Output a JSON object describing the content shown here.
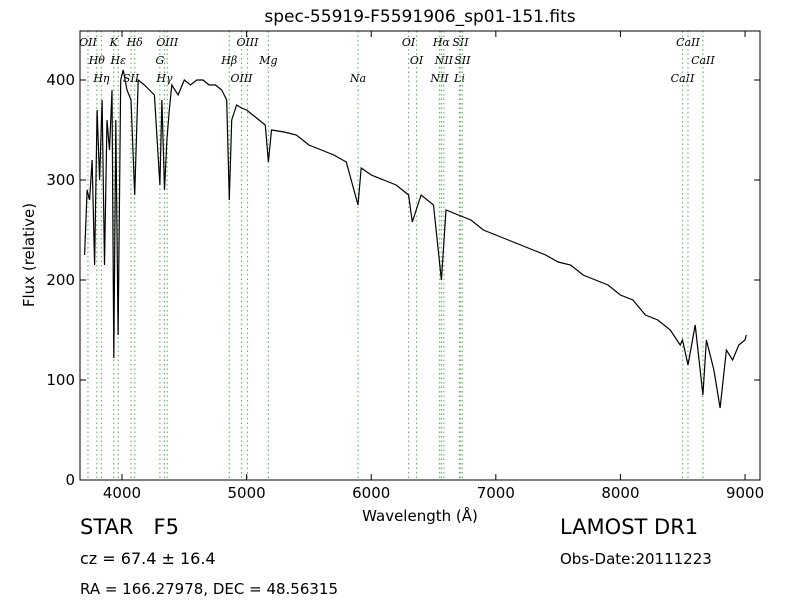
{
  "chart_data": {
    "type": "line",
    "title": "spec-55919-F5591906_sp01-151.fits",
    "x_label": "Wavelength (Å)",
    "y_label": "Flux (relative)",
    "color": "#000000",
    "x": [
      3700,
      3720,
      3740,
      3760,
      3780,
      3800,
      3820,
      3840,
      3860,
      3880,
      3900,
      3920,
      3934,
      3950,
      3969,
      3990,
      4010,
      4040,
      4072,
      4102,
      4130,
      4180,
      4220,
      4260,
      4304,
      4320,
      4341,
      4360,
      4380,
      4400,
      4450,
      4500,
      4550,
      4600,
      4650,
      4700,
      4750,
      4800,
      4840,
      4861,
      4880,
      4920,
      4960,
      5000,
      5050,
      5100,
      5150,
      5175,
      5200,
      5300,
      5400,
      5500,
      5600,
      5700,
      5800,
      5894,
      5920,
      6000,
      6100,
      6200,
      6300,
      6330,
      6400,
      6500,
      6563,
      6600,
      6700,
      6800,
      6900,
      7000,
      7100,
      7200,
      7300,
      7400,
      7500,
      7600,
      7700,
      7800,
      7900,
      8000,
      8100,
      8200,
      8300,
      8400,
      8480,
      8498,
      8542,
      8600,
      8662,
      8690,
      8750,
      8800,
      8850,
      8900,
      8950,
      9000,
      9010
    ],
    "values": [
      225,
      290,
      280,
      320,
      215,
      370,
      300,
      380,
      215,
      360,
      330,
      390,
      122,
      360,
      145,
      400,
      410,
      390,
      380,
      285,
      400,
      395,
      390,
      385,
      295,
      380,
      290,
      340,
      370,
      395,
      385,
      400,
      395,
      400,
      400,
      395,
      395,
      390,
      380,
      280,
      360,
      375,
      372,
      370,
      365,
      360,
      355,
      318,
      350,
      348,
      345,
      335,
      330,
      325,
      318,
      275,
      312,
      305,
      300,
      295,
      285,
      258,
      285,
      275,
      200,
      270,
      265,
      260,
      250,
      245,
      240,
      235,
      230,
      225,
      218,
      215,
      205,
      200,
      195,
      185,
      180,
      165,
      160,
      150,
      135,
      140,
      115,
      155,
      85,
      140,
      110,
      72,
      130,
      120,
      135,
      140,
      145
    ],
    "xlim": [
      3663,
      9120
    ],
    "ylim": [
      0,
      449
    ],
    "xticks": [
      4000,
      5000,
      6000,
      7000,
      8000,
      9000
    ],
    "yticks": [
      0,
      100,
      200,
      300,
      400
    ],
    "marker_color": "#66bb66",
    "markers": [
      {
        "label": "OII",
        "x": 3727
      },
      {
        "label": "Hθ",
        "x": 3798
      },
      {
        "label": "Hη",
        "x": 3835
      },
      {
        "label": "K",
        "x": 3934
      },
      {
        "label": "Hε",
        "x": 3970
      },
      {
        "label": "SII",
        "x": 4072
      },
      {
        "label": "Hδ",
        "x": 4102
      },
      {
        "label": "G",
        "x": 4304
      },
      {
        "label": "Hγ",
        "x": 4341
      },
      {
        "label": "OIII",
        "x": 4363
      },
      {
        "label": "Hβ",
        "x": 4861
      },
      {
        "label": "OIII",
        "x": 4959
      },
      {
        "label": "OIII",
        "x": 5007
      },
      {
        "label": "Mg",
        "x": 5175
      },
      {
        "label": "Na",
        "x": 5894
      },
      {
        "label": "OI",
        "x": 6300
      },
      {
        "label": "OI",
        "x": 6364
      },
      {
        "label": "NII",
        "x": 6548
      },
      {
        "label": "Hα",
        "x": 6563
      },
      {
        "label": "NII",
        "x": 6583
      },
      {
        "label": "Li",
        "x": 6708
      },
      {
        "label": "SII",
        "x": 6716
      },
      {
        "label": "SII",
        "x": 6731
      },
      {
        "label": "CaII",
        "x": 8498
      },
      {
        "label": "CaII",
        "x": 8542
      },
      {
        "label": "CaII",
        "x": 8662
      }
    ],
    "annotations": [
      "STAR   F5",
      "cz = 67.4 ± 16.4",
      "RA = 166.27978, DEC = 48.56315",
      "LAMOST DR1",
      "Obs-Date:20111223"
    ]
  }
}
